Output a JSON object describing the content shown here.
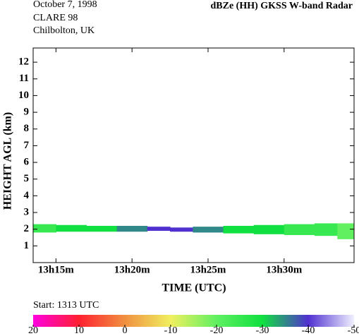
{
  "chart_data": {
    "type": "time-height",
    "header": [
      "October  7, 1998",
      "CLARE 98",
      "Chilbolton, UK"
    ],
    "title": "dBZe (HH)   GKSS  W-band Radar",
    "ylabel": "HEIGHT AGL (km)",
    "xlabel": "TIME (UTC)",
    "start_label": "Start: 1313 UTC",
    "xlim": [
      13.5,
      34.6
    ],
    "xticks": [
      {
        "value": 15,
        "label": "13h15m"
      },
      {
        "value": 20,
        "label": "13h20m"
      },
      {
        "value": 25,
        "label": "13h25m"
      },
      {
        "value": 30,
        "label": "13h30m"
      }
    ],
    "ylim": [
      0,
      12.85
    ],
    "yticks": [
      1,
      2,
      3,
      4,
      5,
      6,
      7,
      8,
      9,
      10,
      11,
      12
    ],
    "echo": {
      "x": [
        13.5,
        15,
        17,
        19,
        21,
        22.5,
        24,
        26,
        28,
        30,
        32,
        33.5,
        34.6
      ],
      "top": [
        2.3,
        2.25,
        2.2,
        2.2,
        2.15,
        2.1,
        2.15,
        2.2,
        2.25,
        2.3,
        2.35,
        2.35
      ],
      "base": [
        1.8,
        1.85,
        1.85,
        1.85,
        1.9,
        1.85,
        1.8,
        1.75,
        1.7,
        1.65,
        1.6,
        1.4
      ],
      "dbz": [
        -25,
        -30,
        -30,
        -35,
        -40,
        -40,
        -35,
        -30,
        -30,
        -25,
        -25,
        -20
      ]
    },
    "colorbar": {
      "lim": [
        20,
        -50
      ],
      "ticks": [
        20,
        10,
        0,
        -10,
        -20,
        -30,
        -40,
        -50
      ],
      "colors": [
        "#ff00e0",
        "#ff2030",
        "#f09040",
        "#f0f060",
        "#60f060",
        "#10e040",
        "#5030d0",
        "#f0f0ff"
      ]
    }
  }
}
